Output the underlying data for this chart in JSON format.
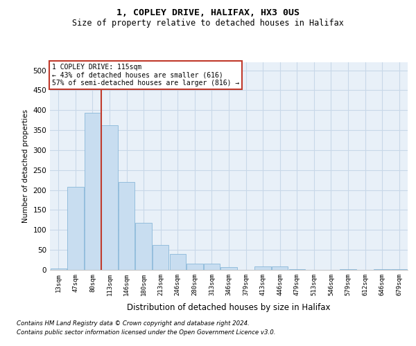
{
  "title1": "1, COPLEY DRIVE, HALIFAX, HX3 0US",
  "title2": "Size of property relative to detached houses in Halifax",
  "xlabel": "Distribution of detached houses by size in Halifax",
  "ylabel": "Number of detached properties",
  "categories": [
    "13sqm",
    "47sqm",
    "80sqm",
    "113sqm",
    "146sqm",
    "180sqm",
    "213sqm",
    "246sqm",
    "280sqm",
    "313sqm",
    "346sqm",
    "379sqm",
    "413sqm",
    "446sqm",
    "479sqm",
    "513sqm",
    "546sqm",
    "579sqm",
    "612sqm",
    "646sqm",
    "679sqm"
  ],
  "values": [
    3,
    208,
    393,
    362,
    220,
    118,
    63,
    40,
    15,
    15,
    7,
    0,
    8,
    8,
    2,
    0,
    0,
    2,
    0,
    2,
    1
  ],
  "bar_color": "#c8ddf0",
  "bar_edge_color": "#7bafd4",
  "grid_color": "#c8d8e8",
  "bg_color": "#e8f0f8",
  "vline_color": "#c0392b",
  "vline_index": 3,
  "annotation_text": "1 COPLEY DRIVE: 115sqm\n← 43% of detached houses are smaller (616)\n57% of semi-detached houses are larger (816) →",
  "annotation_box_color": "#c0392b",
  "footnote1": "Contains HM Land Registry data © Crown copyright and database right 2024.",
  "footnote2": "Contains public sector information licensed under the Open Government Licence v3.0.",
  "ylim": [
    0,
    520
  ],
  "yticks": [
    0,
    50,
    100,
    150,
    200,
    250,
    300,
    350,
    400,
    450,
    500
  ]
}
